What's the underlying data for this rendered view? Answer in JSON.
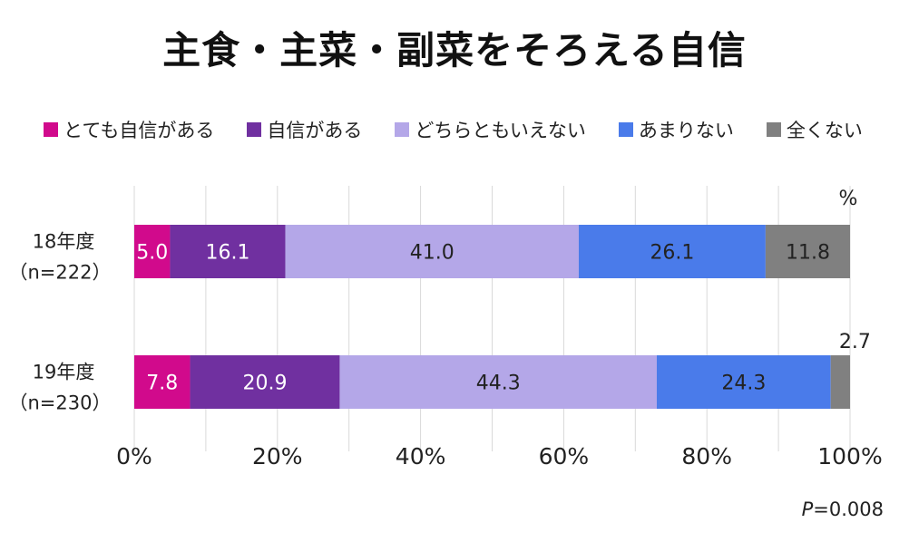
{
  "chart_data": {
    "type": "bar",
    "orientation": "horizontal",
    "stacked": true,
    "title": "主食・主菜・副菜をそろえる自信",
    "categories": [
      {
        "line1": "18年度",
        "line2": "（n=222）"
      },
      {
        "line1": "19年度",
        "line2": "（n=230）"
      }
    ],
    "series": [
      {
        "name": "とても自信がある",
        "color": "#d10a8c",
        "values": [
          5.0,
          7.8
        ],
        "labels": [
          "5.0",
          "7.8"
        ]
      },
      {
        "name": "自信がある",
        "color": "#7030a0",
        "values": [
          16.1,
          20.9
        ],
        "labels": [
          "16.1",
          "20.9"
        ]
      },
      {
        "name": "どちらともいえない",
        "color": "#b4a7e8",
        "values": [
          41.0,
          44.3
        ],
        "labels": [
          "41.0",
          "44.3"
        ]
      },
      {
        "name": "あまりない",
        "color": "#4a7bea",
        "values": [
          26.1,
          24.3
        ],
        "labels": [
          "26.1",
          "24.3"
        ]
      },
      {
        "name": "全くない",
        "color": "#808080",
        "values": [
          11.8,
          2.7
        ],
        "labels": [
          "11.8",
          "2.7"
        ]
      }
    ],
    "xlim": [
      0,
      100
    ],
    "xticks": [
      "0%",
      "20%",
      "40%",
      "60%",
      "80%",
      "100%"
    ],
    "unit_label": "%",
    "grid": true,
    "legend_position": "top"
  },
  "p_value": {
    "letter": "P",
    "text": "=0.008"
  }
}
